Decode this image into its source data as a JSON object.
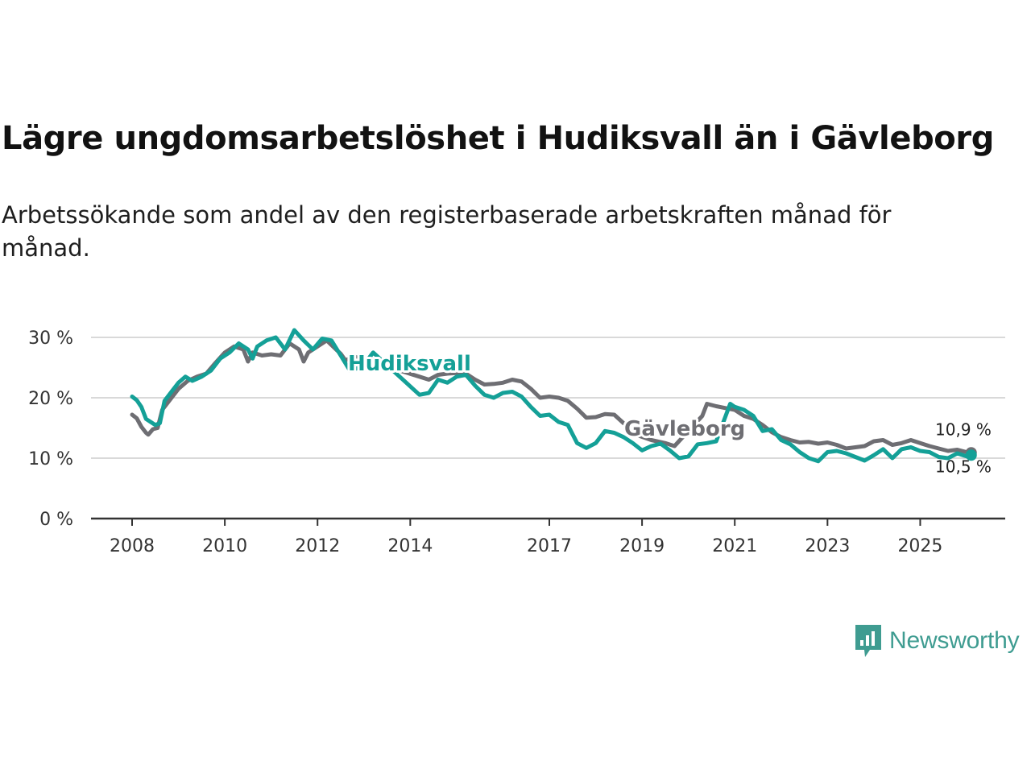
{
  "title": "Lägre ungdomsarbetslöshet i Hudiksvall än i Gävleborg",
  "subtitle": "Arbetssökande som andel av den registerbaserade arbetskraften månad för månad.",
  "brand": {
    "name": "Newsworthy",
    "icon": "newsworthy-chart-bubble-icon",
    "color": "#3f9c91"
  },
  "chart_data": {
    "type": "line",
    "xlabel": "",
    "ylabel": "",
    "ylim": [
      0,
      30
    ],
    "xlim": [
      2008,
      2026.4
    ],
    "y_ticks": [
      0,
      10,
      20,
      30
    ],
    "y_tick_labels": [
      "0 %",
      "10 %",
      "20 %",
      "30 %"
    ],
    "x_ticks": [
      2008,
      2010,
      2012,
      2014,
      2017,
      2019,
      2021,
      2023,
      2025
    ],
    "x_tick_labels": [
      "2008",
      "2010",
      "2012",
      "2014",
      "2017",
      "2019",
      "2021",
      "2023",
      "2025"
    ],
    "grid": "horizontal",
    "legend": "inline labels",
    "series": [
      {
        "name": "Gävleborg",
        "color": "#6e6e73",
        "end_label": "10,9 %",
        "points": [
          [
            2008.0,
            17.2
          ],
          [
            2008.1,
            16.6
          ],
          [
            2008.2,
            15.2
          ],
          [
            2008.3,
            14.2
          ],
          [
            2008.35,
            13.9
          ],
          [
            2008.45,
            14.8
          ],
          [
            2008.55,
            15.0
          ],
          [
            2008.65,
            18.0
          ],
          [
            2008.8,
            19.5
          ],
          [
            2009.0,
            21.5
          ],
          [
            2009.2,
            22.8
          ],
          [
            2009.4,
            23.5
          ],
          [
            2009.6,
            24.0
          ],
          [
            2009.8,
            25.8
          ],
          [
            2010.0,
            27.5
          ],
          [
            2010.2,
            28.5
          ],
          [
            2010.4,
            28.0
          ],
          [
            2010.5,
            26.0
          ],
          [
            2010.6,
            27.5
          ],
          [
            2010.8,
            27.0
          ],
          [
            2011.0,
            27.2
          ],
          [
            2011.2,
            27.0
          ],
          [
            2011.4,
            29.0
          ],
          [
            2011.6,
            28.0
          ],
          [
            2011.7,
            26.0
          ],
          [
            2011.8,
            27.5
          ],
          [
            2012.0,
            28.5
          ],
          [
            2012.2,
            29.5
          ],
          [
            2012.4,
            28.0
          ],
          [
            2012.5,
            27.3
          ],
          [
            2012.6,
            26.2
          ],
          [
            2012.8,
            26.8
          ],
          [
            2014.2,
            23.5
          ],
          [
            2014.4,
            23.0
          ],
          [
            2014.6,
            23.8
          ],
          [
            2014.8,
            24.0
          ],
          [
            2015.0,
            24.1
          ],
          [
            2015.2,
            24.0
          ],
          [
            2015.4,
            23.0
          ],
          [
            2015.6,
            22.2
          ],
          [
            2015.8,
            22.3
          ],
          [
            2016.0,
            22.5
          ],
          [
            2016.2,
            23.0
          ],
          [
            2016.4,
            22.7
          ],
          [
            2016.6,
            21.5
          ],
          [
            2016.8,
            20.0
          ],
          [
            2017.0,
            20.2
          ],
          [
            2017.2,
            20.0
          ],
          [
            2017.4,
            19.5
          ],
          [
            2017.6,
            18.2
          ],
          [
            2017.8,
            16.7
          ],
          [
            2018.0,
            16.8
          ],
          [
            2018.2,
            17.3
          ],
          [
            2018.4,
            17.2
          ],
          [
            2018.6,
            15.8
          ],
          [
            2018.8,
            14.7
          ],
          [
            2018.9,
            13.8
          ],
          [
            2019.2,
            13.0
          ],
          [
            2019.5,
            12.5
          ],
          [
            2019.7,
            12.0
          ],
          [
            2020.3,
            17.0
          ],
          [
            2020.4,
            19.0
          ],
          [
            2020.6,
            18.6
          ],
          [
            2020.8,
            18.3
          ],
          [
            2021.0,
            18.0
          ],
          [
            2021.2,
            17.0
          ],
          [
            2021.4,
            16.5
          ],
          [
            2021.6,
            15.5
          ],
          [
            2021.8,
            14.3
          ],
          [
            2022.0,
            13.5
          ],
          [
            2022.2,
            13.0
          ],
          [
            2022.4,
            12.6
          ],
          [
            2022.6,
            12.7
          ],
          [
            2022.8,
            12.4
          ],
          [
            2023.0,
            12.6
          ],
          [
            2023.2,
            12.2
          ],
          [
            2023.4,
            11.6
          ],
          [
            2023.6,
            11.8
          ],
          [
            2023.8,
            12.0
          ],
          [
            2024.0,
            12.8
          ],
          [
            2024.2,
            13.0
          ],
          [
            2024.4,
            12.2
          ],
          [
            2024.6,
            12.5
          ],
          [
            2024.8,
            13.0
          ],
          [
            2025.0,
            12.5
          ],
          [
            2025.2,
            12.0
          ],
          [
            2025.4,
            11.6
          ],
          [
            2025.6,
            11.2
          ],
          [
            2025.8,
            11.4
          ],
          [
            2026.0,
            11.0
          ],
          [
            2026.1,
            10.9
          ]
        ]
      },
      {
        "name": "Hudiksvall",
        "color": "#14a097",
        "end_label": "10,5 %",
        "points": [
          [
            2008.0,
            20.2
          ],
          [
            2008.1,
            19.6
          ],
          [
            2008.2,
            18.5
          ],
          [
            2008.3,
            16.5
          ],
          [
            2008.4,
            16.0
          ],
          [
            2008.5,
            15.5
          ],
          [
            2008.6,
            15.8
          ],
          [
            2008.7,
            19.5
          ],
          [
            2008.85,
            21.0
          ],
          [
            2009.0,
            22.5
          ],
          [
            2009.15,
            23.5
          ],
          [
            2009.3,
            22.8
          ],
          [
            2009.5,
            23.5
          ],
          [
            2009.7,
            24.5
          ],
          [
            2009.9,
            26.5
          ],
          [
            2010.1,
            27.5
          ],
          [
            2010.3,
            29.0
          ],
          [
            2010.5,
            28.0
          ],
          [
            2010.6,
            26.5
          ],
          [
            2010.7,
            28.5
          ],
          [
            2010.9,
            29.5
          ],
          [
            2011.1,
            30.0
          ],
          [
            2011.3,
            28.0
          ],
          [
            2011.5,
            31.2
          ],
          [
            2011.7,
            29.5
          ],
          [
            2011.9,
            28.0
          ],
          [
            2012.1,
            29.8
          ],
          [
            2012.3,
            29.5
          ],
          [
            2012.5,
            27.0
          ],
          [
            2012.7,
            24.5
          ],
          [
            2012.9,
            25.0
          ],
          [
            2013.0,
            25.5
          ],
          [
            2013.2,
            27.5
          ],
          [
            2014.2,
            20.5
          ],
          [
            2014.4,
            20.8
          ],
          [
            2014.6,
            23.0
          ],
          [
            2014.8,
            22.5
          ],
          [
            2015.0,
            23.5
          ],
          [
            2015.2,
            23.8
          ],
          [
            2015.4,
            22.0
          ],
          [
            2015.6,
            20.5
          ],
          [
            2015.8,
            20.0
          ],
          [
            2016.0,
            20.8
          ],
          [
            2016.2,
            21.0
          ],
          [
            2016.4,
            20.2
          ],
          [
            2016.6,
            18.5
          ],
          [
            2016.8,
            17.0
          ],
          [
            2017.0,
            17.2
          ],
          [
            2017.2,
            16.0
          ],
          [
            2017.4,
            15.5
          ],
          [
            2017.6,
            12.5
          ],
          [
            2017.8,
            11.7
          ],
          [
            2018.0,
            12.5
          ],
          [
            2018.2,
            14.5
          ],
          [
            2018.4,
            14.2
          ],
          [
            2018.6,
            13.5
          ],
          [
            2018.8,
            12.5
          ],
          [
            2019.0,
            11.3
          ],
          [
            2019.2,
            12.0
          ],
          [
            2019.4,
            12.4
          ],
          [
            2019.6,
            11.3
          ],
          [
            2019.8,
            10.0
          ],
          [
            2020.0,
            10.3
          ],
          [
            2020.2,
            12.3
          ],
          [
            2020.4,
            12.5
          ],
          [
            2020.6,
            12.8
          ],
          [
            2020.9,
            19.0
          ],
          [
            2021.0,
            18.5
          ],
          [
            2021.2,
            18.0
          ],
          [
            2021.4,
            17.0
          ],
          [
            2021.6,
            14.5
          ],
          [
            2021.8,
            14.8
          ],
          [
            2022.0,
            13.0
          ],
          [
            2022.2,
            12.3
          ],
          [
            2022.4,
            11.0
          ],
          [
            2022.6,
            10.0
          ],
          [
            2022.8,
            9.5
          ],
          [
            2023.0,
            11.0
          ],
          [
            2023.2,
            11.2
          ],
          [
            2023.4,
            10.8
          ],
          [
            2023.6,
            10.2
          ],
          [
            2023.8,
            9.6
          ],
          [
            2024.0,
            10.5
          ],
          [
            2024.2,
            11.5
          ],
          [
            2024.4,
            10.0
          ],
          [
            2024.6,
            11.5
          ],
          [
            2024.8,
            11.8
          ],
          [
            2025.0,
            11.2
          ],
          [
            2025.2,
            11.0
          ],
          [
            2025.4,
            10.2
          ],
          [
            2025.6,
            10.0
          ],
          [
            2025.8,
            10.8
          ],
          [
            2026.0,
            10.3
          ],
          [
            2026.1,
            10.5
          ]
        ]
      }
    ]
  }
}
